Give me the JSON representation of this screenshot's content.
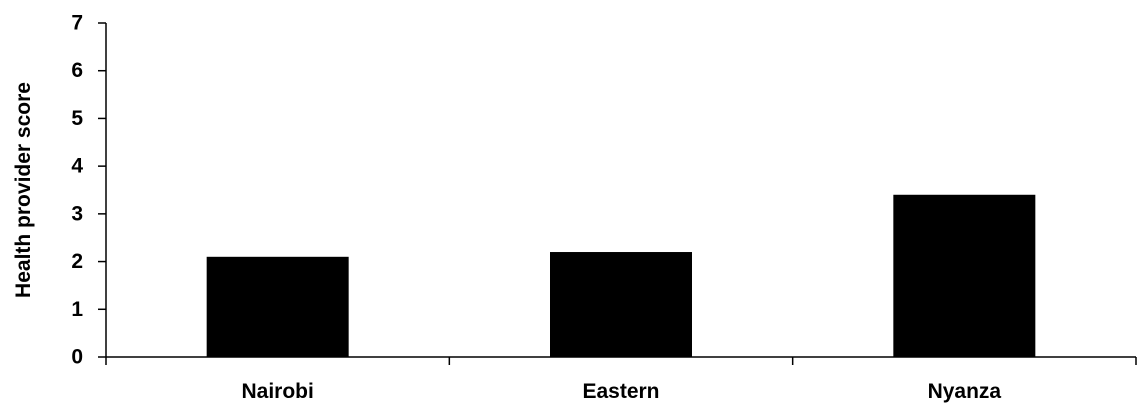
{
  "chart_data": {
    "type": "bar",
    "title": "",
    "xlabel": "",
    "ylabel": "Health provider score",
    "categories": [
      "Nairobi",
      "Eastern",
      "Nyanza"
    ],
    "values": [
      2.1,
      2.2,
      3.4
    ],
    "ylim": [
      0,
      7
    ],
    "yticks": [
      0,
      1,
      2,
      3,
      4,
      5,
      6,
      7
    ],
    "grid": false,
    "legend": "none",
    "bar_color": "#000000",
    "axis_color": "#000000"
  }
}
